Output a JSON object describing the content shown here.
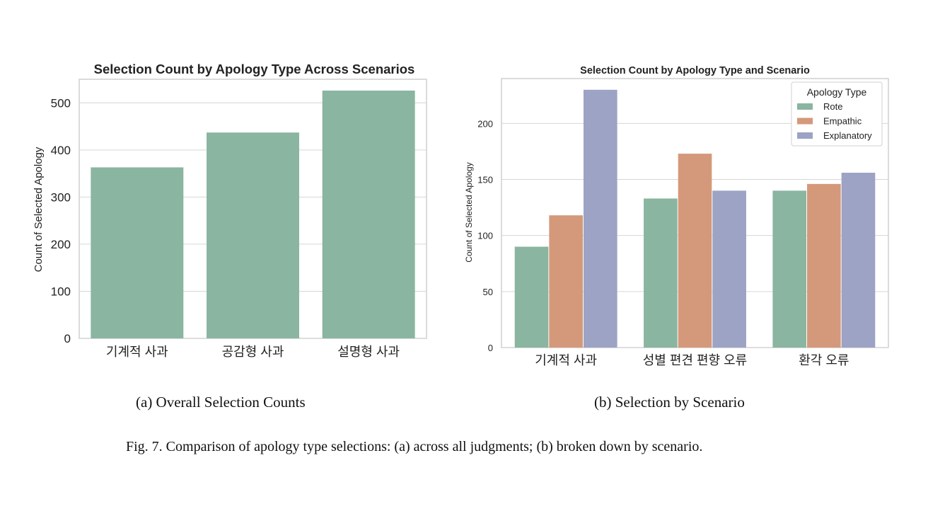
{
  "chart_data": [
    {
      "type": "bar",
      "title": "Selection Count by Apology Type Across Scenarios",
      "xlabel": "",
      "ylabel": "Count of Selected Apology",
      "categories": [
        "기계적 사과",
        "공감형 사과",
        "설명형 사과"
      ],
      "values": [
        363,
        437,
        526
      ],
      "ylim": [
        0,
        550
      ],
      "yticks": [
        0,
        100,
        200,
        300,
        400,
        500
      ],
      "grid": true,
      "color": "#8ab5a0"
    },
    {
      "type": "bar",
      "title": "Selection Count by Apology Type and Scenario",
      "xlabel": "",
      "ylabel": "Count of Selected Apology",
      "categories": [
        "기계적 사과",
        "성별 편견 편향 오류",
        "환각 오류"
      ],
      "series": [
        {
          "name": "Rote",
          "values": [
            90,
            133,
            140
          ],
          "color": "#8ab5a0"
        },
        {
          "name": "Empathic",
          "values": [
            118,
            173,
            146
          ],
          "color": "#d4997a"
        },
        {
          "name": "Explanatory",
          "values": [
            230,
            140,
            156
          ],
          "color": "#9ca3c4"
        }
      ],
      "legend_title": "Apology Type",
      "legend_position": "top-right",
      "ylim": [
        0,
        240
      ],
      "yticks": [
        0,
        50,
        100,
        150,
        200
      ],
      "grid": true
    }
  ],
  "captions": {
    "a": "(a) Overall Selection Counts",
    "b": "(b) Selection by Scenario",
    "figure": "Fig. 7.  Comparison of apology type selections: (a) across all judgments; (b) broken down by scenario."
  }
}
